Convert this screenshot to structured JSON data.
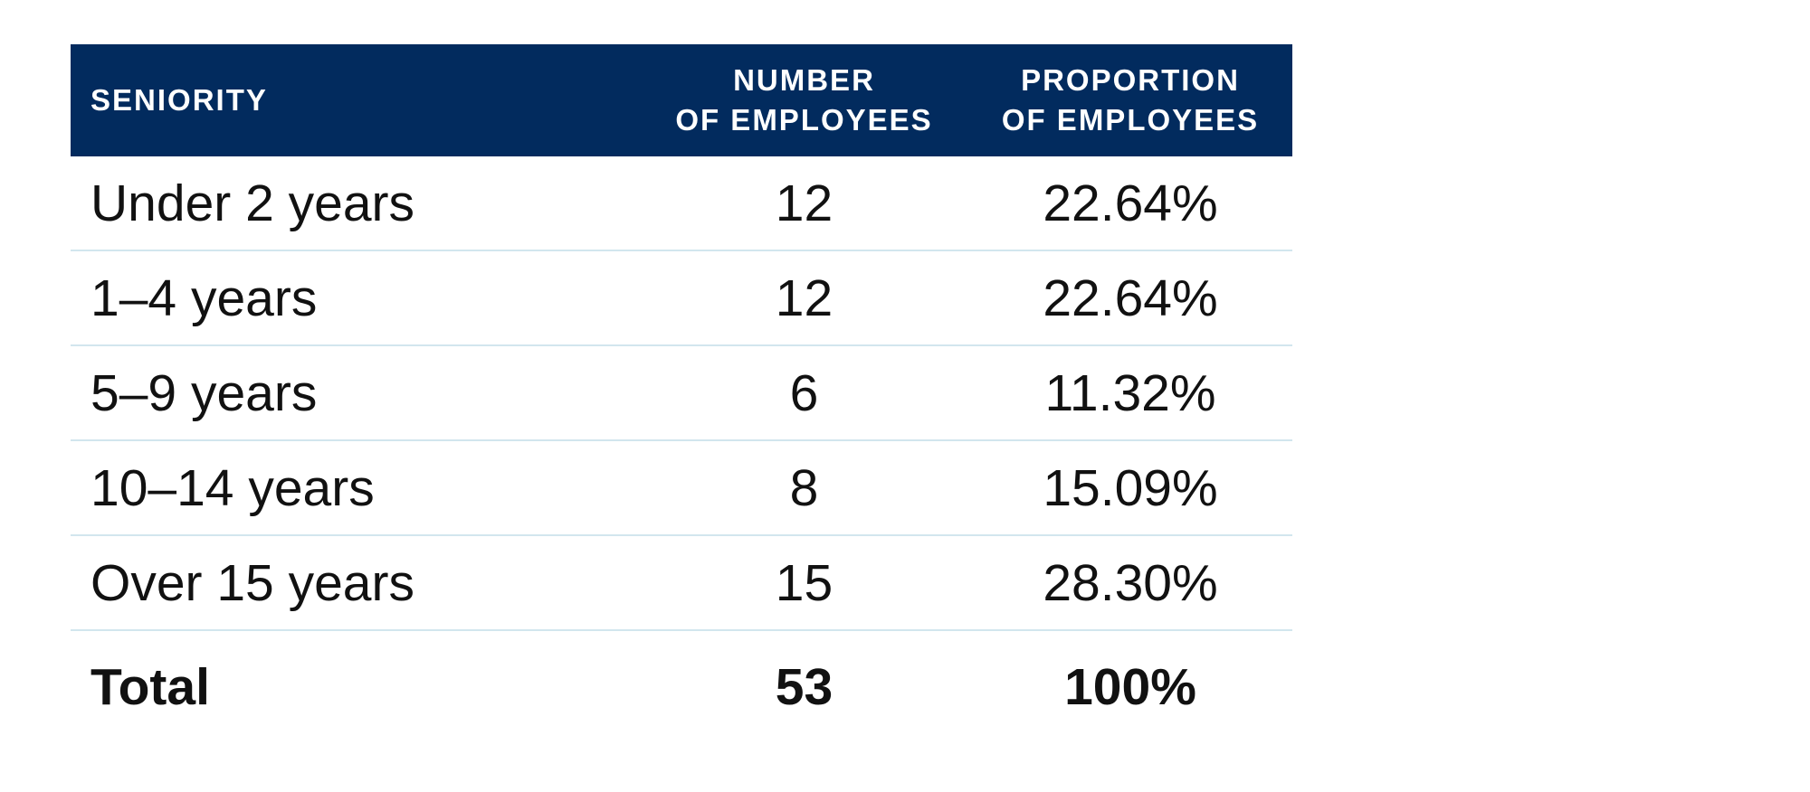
{
  "colors": {
    "header_bg": "#022b5e",
    "header_text": "#ffffff",
    "row_divider": "#d2e6ee",
    "body_text": "#111111"
  },
  "table": {
    "headers": [
      {
        "lines": [
          "SENIORITY"
        ]
      },
      {
        "lines": [
          "NUMBER",
          "OF EMPLOYEES"
        ]
      },
      {
        "lines": [
          "PROPORTION",
          "OF EMPLOYEES"
        ]
      }
    ],
    "rows": [
      {
        "seniority": "Under 2 years",
        "number": "12",
        "proportion": "22.64%"
      },
      {
        "seniority": "1–4 years",
        "number": "12",
        "proportion": "22.64%"
      },
      {
        "seniority": "5–9 years",
        "number": "6",
        "proportion": "11.32%"
      },
      {
        "seniority": "10–14 years",
        "number": "8",
        "proportion": "15.09%"
      },
      {
        "seniority": "Over 15 years",
        "number": "15",
        "proportion": "28.30%"
      }
    ],
    "total": {
      "label": "Total",
      "number": "53",
      "proportion": "100%"
    }
  }
}
